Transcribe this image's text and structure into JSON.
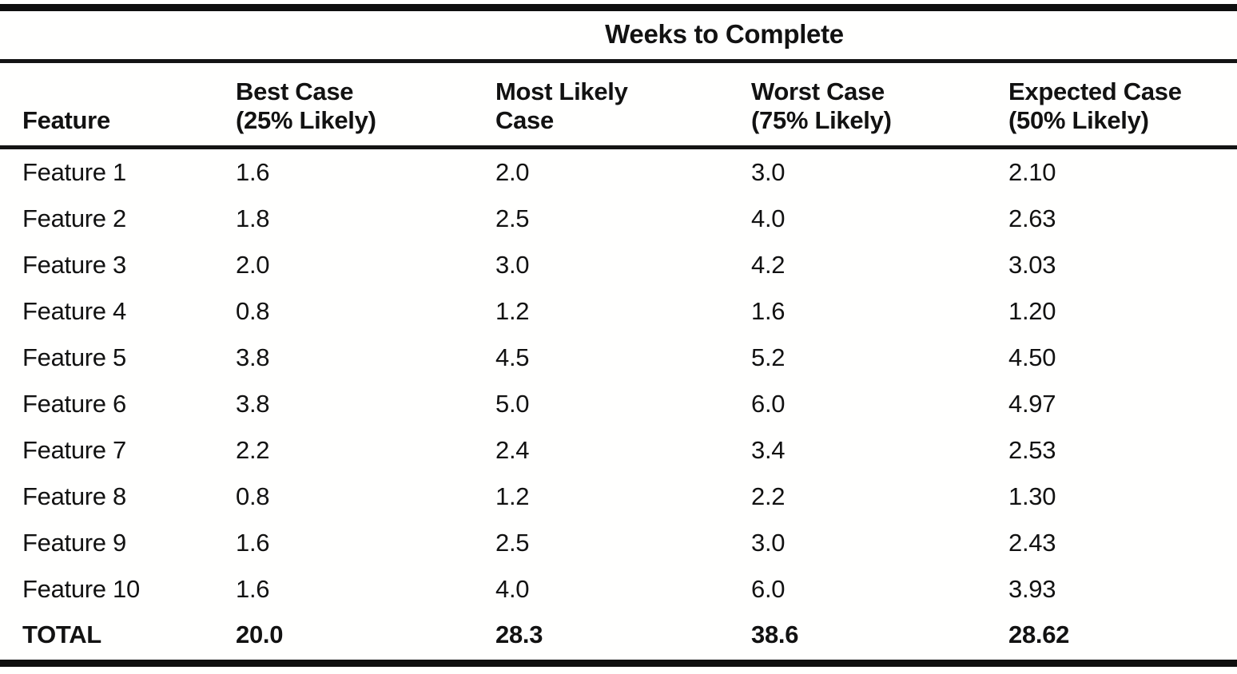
{
  "table": {
    "spanner": "Weeks to Complete",
    "columns": [
      {
        "line1": "Feature",
        "line2": ""
      },
      {
        "line1": "Best Case",
        "line2": "(25% Likely)"
      },
      {
        "line1": "Most Likely",
        "line2": "Case"
      },
      {
        "line1": "Worst Case",
        "line2": "(75% Likely)"
      },
      {
        "line1": "Expected Case",
        "line2": "(50% Likely)"
      }
    ],
    "rows": [
      {
        "feature": "Feature 1",
        "best": "1.6",
        "most_likely": "2.0",
        "worst": "3.0",
        "expected": "2.10"
      },
      {
        "feature": "Feature 2",
        "best": "1.8",
        "most_likely": "2.5",
        "worst": "4.0",
        "expected": "2.63"
      },
      {
        "feature": "Feature 3",
        "best": "2.0",
        "most_likely": "3.0",
        "worst": "4.2",
        "expected": "3.03"
      },
      {
        "feature": "Feature 4",
        "best": "0.8",
        "most_likely": "1.2",
        "worst": "1.6",
        "expected": "1.20"
      },
      {
        "feature": "Feature 5",
        "best": "3.8",
        "most_likely": "4.5",
        "worst": "5.2",
        "expected": "4.50"
      },
      {
        "feature": "Feature 6",
        "best": "3.8",
        "most_likely": "5.0",
        "worst": "6.0",
        "expected": "4.97"
      },
      {
        "feature": "Feature 7",
        "best": "2.2",
        "most_likely": "2.4",
        "worst": "3.4",
        "expected": "2.53"
      },
      {
        "feature": "Feature 8",
        "best": "0.8",
        "most_likely": "1.2",
        "worst": "2.2",
        "expected": "1.30"
      },
      {
        "feature": "Feature 9",
        "best": "1.6",
        "most_likely": "2.5",
        "worst": "3.0",
        "expected": "2.43"
      },
      {
        "feature": "Feature 10",
        "best": "1.6",
        "most_likely": "4.0",
        "worst": "6.0",
        "expected": "3.93"
      }
    ],
    "total": {
      "feature": "TOTAL",
      "best": "20.0",
      "most_likely": "28.3",
      "worst": "38.6",
      "expected": "28.62"
    }
  },
  "colors": {
    "text": "#121212",
    "rule": "#141414",
    "background": "#ffffff"
  }
}
